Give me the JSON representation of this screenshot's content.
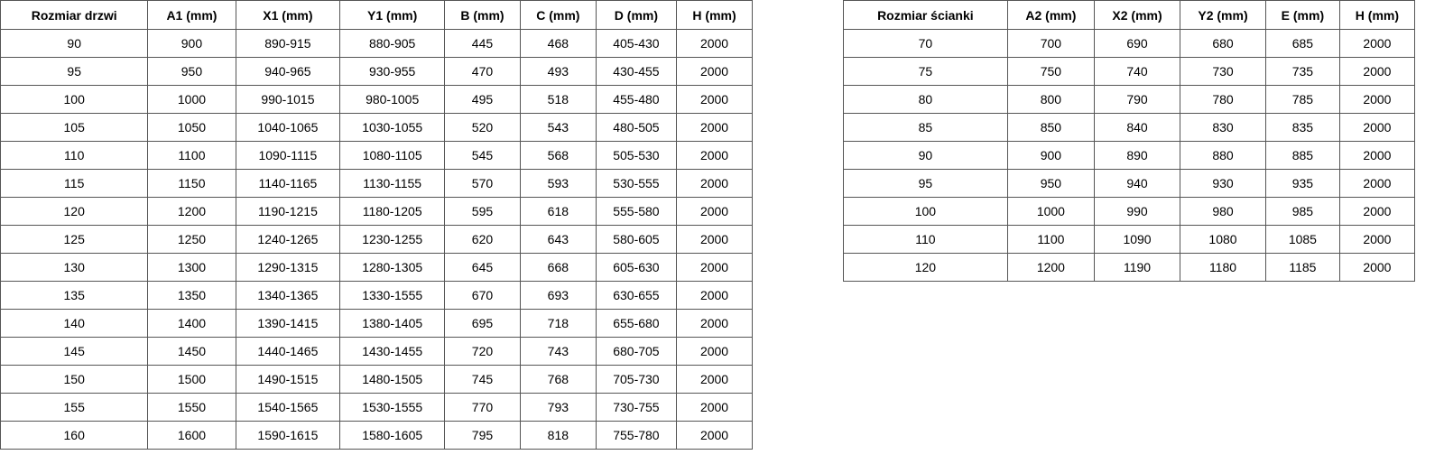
{
  "doors_table": {
    "headers": [
      "Rozmiar drzwi",
      "A1 (mm)",
      "X1 (mm)",
      "Y1 (mm)",
      "B (mm)",
      "C (mm)",
      "D (mm)",
      "H (mm)"
    ],
    "rows": [
      [
        "90",
        "900",
        "890-915",
        "880-905",
        "445",
        "468",
        "405-430",
        "2000"
      ],
      [
        "95",
        "950",
        "940-965",
        "930-955",
        "470",
        "493",
        "430-455",
        "2000"
      ],
      [
        "100",
        "1000",
        "990-1015",
        "980-1005",
        "495",
        "518",
        "455-480",
        "2000"
      ],
      [
        "105",
        "1050",
        "1040-1065",
        "1030-1055",
        "520",
        "543",
        "480-505",
        "2000"
      ],
      [
        "110",
        "1100",
        "1090-1115",
        "1080-1105",
        "545",
        "568",
        "505-530",
        "2000"
      ],
      [
        "115",
        "1150",
        "1140-1165",
        "1130-1155",
        "570",
        "593",
        "530-555",
        "2000"
      ],
      [
        "120",
        "1200",
        "1190-1215",
        "1180-1205",
        "595",
        "618",
        "555-580",
        "2000"
      ],
      [
        "125",
        "1250",
        "1240-1265",
        "1230-1255",
        "620",
        "643",
        "580-605",
        "2000"
      ],
      [
        "130",
        "1300",
        "1290-1315",
        "1280-1305",
        "645",
        "668",
        "605-630",
        "2000"
      ],
      [
        "135",
        "1350",
        "1340-1365",
        "1330-1555",
        "670",
        "693",
        "630-655",
        "2000"
      ],
      [
        "140",
        "1400",
        "1390-1415",
        "1380-1405",
        "695",
        "718",
        "655-680",
        "2000"
      ],
      [
        "145",
        "1450",
        "1440-1465",
        "1430-1455",
        "720",
        "743",
        "680-705",
        "2000"
      ],
      [
        "150",
        "1500",
        "1490-1515",
        "1480-1505",
        "745",
        "768",
        "705-730",
        "2000"
      ],
      [
        "155",
        "1550",
        "1540-1565",
        "1530-1555",
        "770",
        "793",
        "730-755",
        "2000"
      ],
      [
        "160",
        "1600",
        "1590-1615",
        "1580-1605",
        "795",
        "818",
        "755-780",
        "2000"
      ]
    ]
  },
  "wall_table": {
    "headers": [
      "Rozmiar ścianki",
      "A2 (mm)",
      "X2 (mm)",
      "Y2 (mm)",
      "E (mm)",
      "H (mm)"
    ],
    "rows": [
      [
        "70",
        "700",
        "690",
        "680",
        "685",
        "2000"
      ],
      [
        "75",
        "750",
        "740",
        "730",
        "735",
        "2000"
      ],
      [
        "80",
        "800",
        "790",
        "780",
        "785",
        "2000"
      ],
      [
        "85",
        "850",
        "840",
        "830",
        "835",
        "2000"
      ],
      [
        "90",
        "900",
        "890",
        "880",
        "885",
        "2000"
      ],
      [
        "95",
        "950",
        "940",
        "930",
        "935",
        "2000"
      ],
      [
        "100",
        "1000",
        "990",
        "980",
        "985",
        "2000"
      ],
      [
        "110",
        "1100",
        "1090",
        "1080",
        "1085",
        "2000"
      ],
      [
        "120",
        "1200",
        "1190",
        "1180",
        "1185",
        "2000"
      ]
    ]
  }
}
